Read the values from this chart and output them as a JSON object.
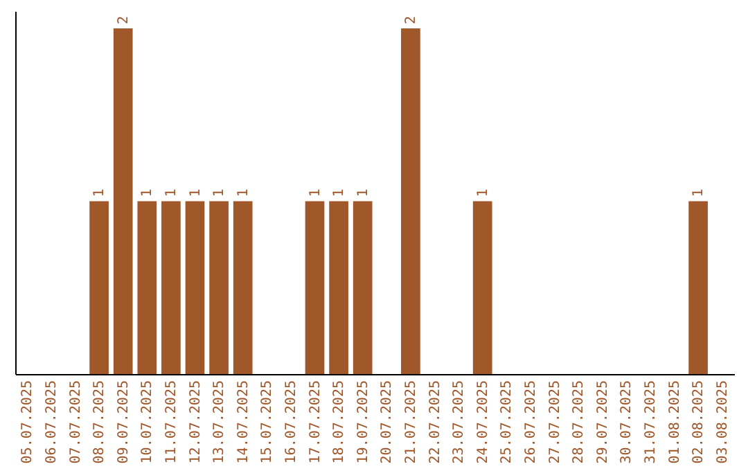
{
  "chart_data": {
    "type": "bar",
    "categories": [
      "05.07.2025",
      "06.07.2025",
      "07.07.2025",
      "08.07.2025",
      "09.07.2025",
      "10.07.2025",
      "11.07.2025",
      "12.07.2025",
      "13.07.2025",
      "14.07.2025",
      "15.07.2025",
      "16.07.2025",
      "17.07.2025",
      "18.07.2025",
      "19.07.2025",
      "20.07.2025",
      "21.07.2025",
      "22.07.2025",
      "23.07.2025",
      "24.07.2025",
      "25.07.2025",
      "26.07.2025",
      "27.07.2025",
      "28.07.2025",
      "29.07.2025",
      "30.07.2025",
      "31.07.2025",
      "01.08.2025",
      "02.08.2025",
      "03.08.2025"
    ],
    "values": [
      0,
      0,
      0,
      1,
      2,
      1,
      1,
      1,
      1,
      1,
      0,
      0,
      1,
      1,
      1,
      0,
      2,
      0,
      0,
      1,
      0,
      0,
      0,
      0,
      0,
      0,
      0,
      0,
      1,
      0
    ],
    "value_labels": [
      null,
      null,
      null,
      "1",
      "2",
      "1",
      "1",
      "1",
      "1",
      "1",
      null,
      null,
      "1",
      "1",
      "1",
      null,
      "2",
      null,
      null,
      "1",
      null,
      null,
      null,
      null,
      null,
      null,
      null,
      null,
      "1",
      null
    ],
    "color": "#a0572a",
    "ylim": [
      0,
      2.1
    ],
    "tick_labels": "x",
    "grid": false
  }
}
